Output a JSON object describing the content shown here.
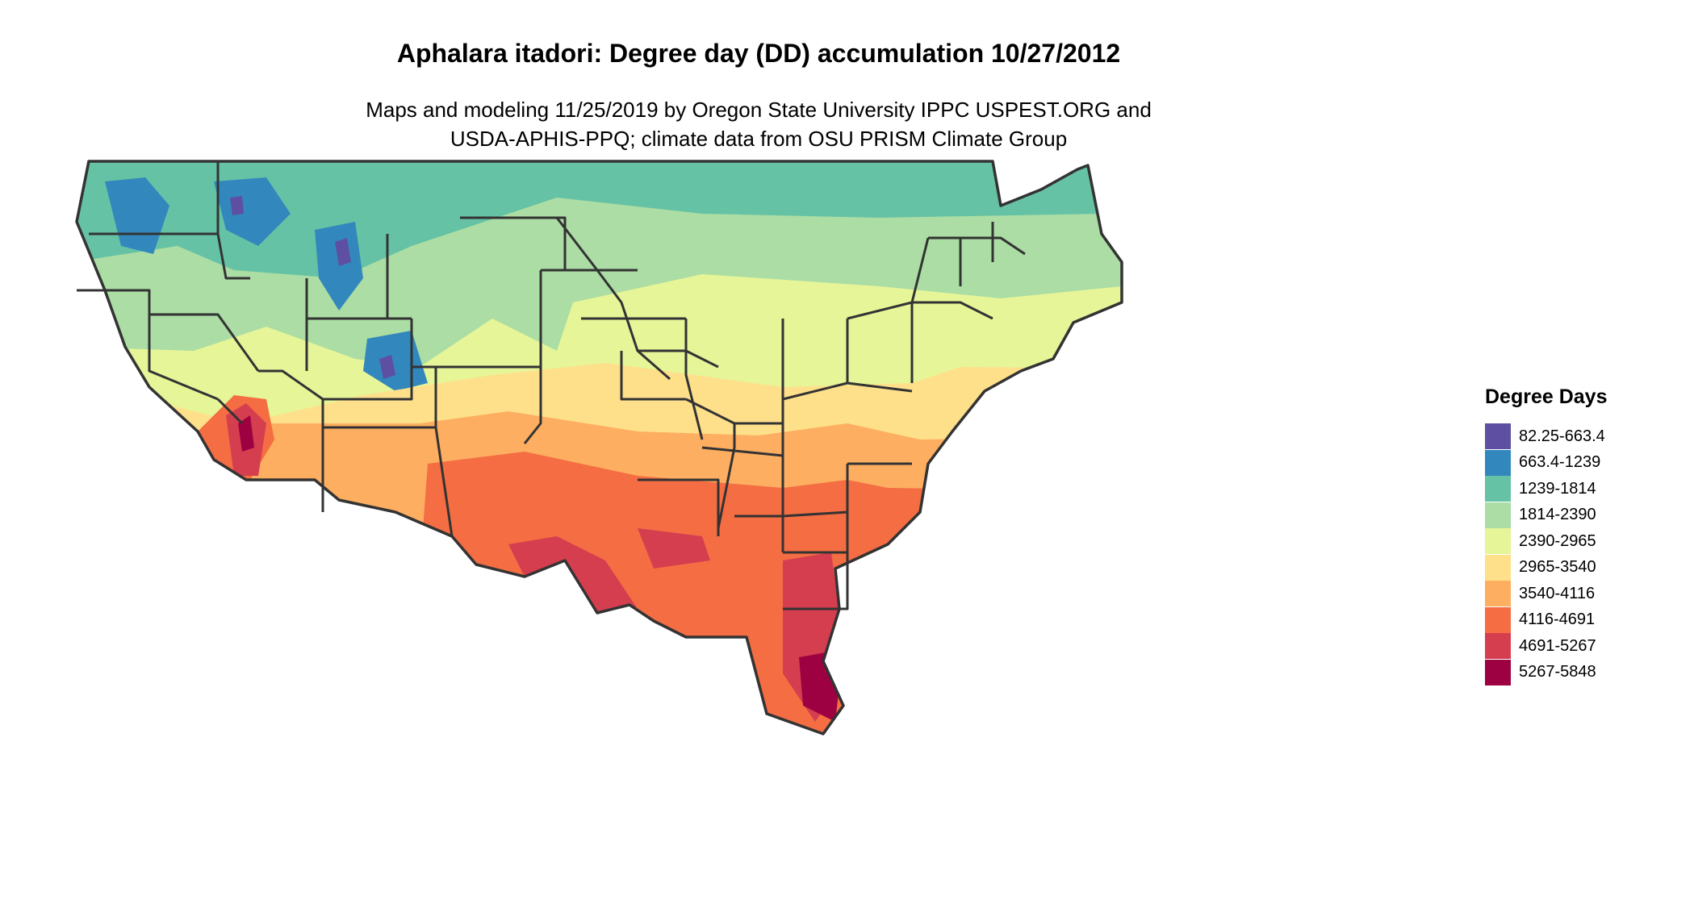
{
  "title": "Aphalara itadori: Degree day (DD) accumulation 10/27/2012",
  "subtitle_line1": "Maps and modeling 11/25/2019 by Oregon State University IPPC USPEST.ORG and",
  "subtitle_line2": "USDA-APHIS-PPQ; climate data from OSU PRISM Climate Group",
  "legend": {
    "title": "Degree Days",
    "items": [
      {
        "label": "82.25-663.4",
        "color": "#5e4fa2"
      },
      {
        "label": "663.4-1239",
        "color": "#3288bd"
      },
      {
        "label": "1239-1814",
        "color": "#66c2a5"
      },
      {
        "label": "1814-2390",
        "color": "#abdda4"
      },
      {
        "label": "2390-2965",
        "color": "#e6f598"
      },
      {
        "label": "2965-3540",
        "color": "#fee08b"
      },
      {
        "label": "3540-4116",
        "color": "#fdae61"
      },
      {
        "label": "4116-4691",
        "color": "#f46d43"
      },
      {
        "label": "4691-5267",
        "color": "#d53e4f"
      },
      {
        "label": "5267-5848",
        "color": "#9e0142"
      }
    ]
  },
  "map": {
    "region": "conterminous United States",
    "state_border_color": "#333333"
  }
}
